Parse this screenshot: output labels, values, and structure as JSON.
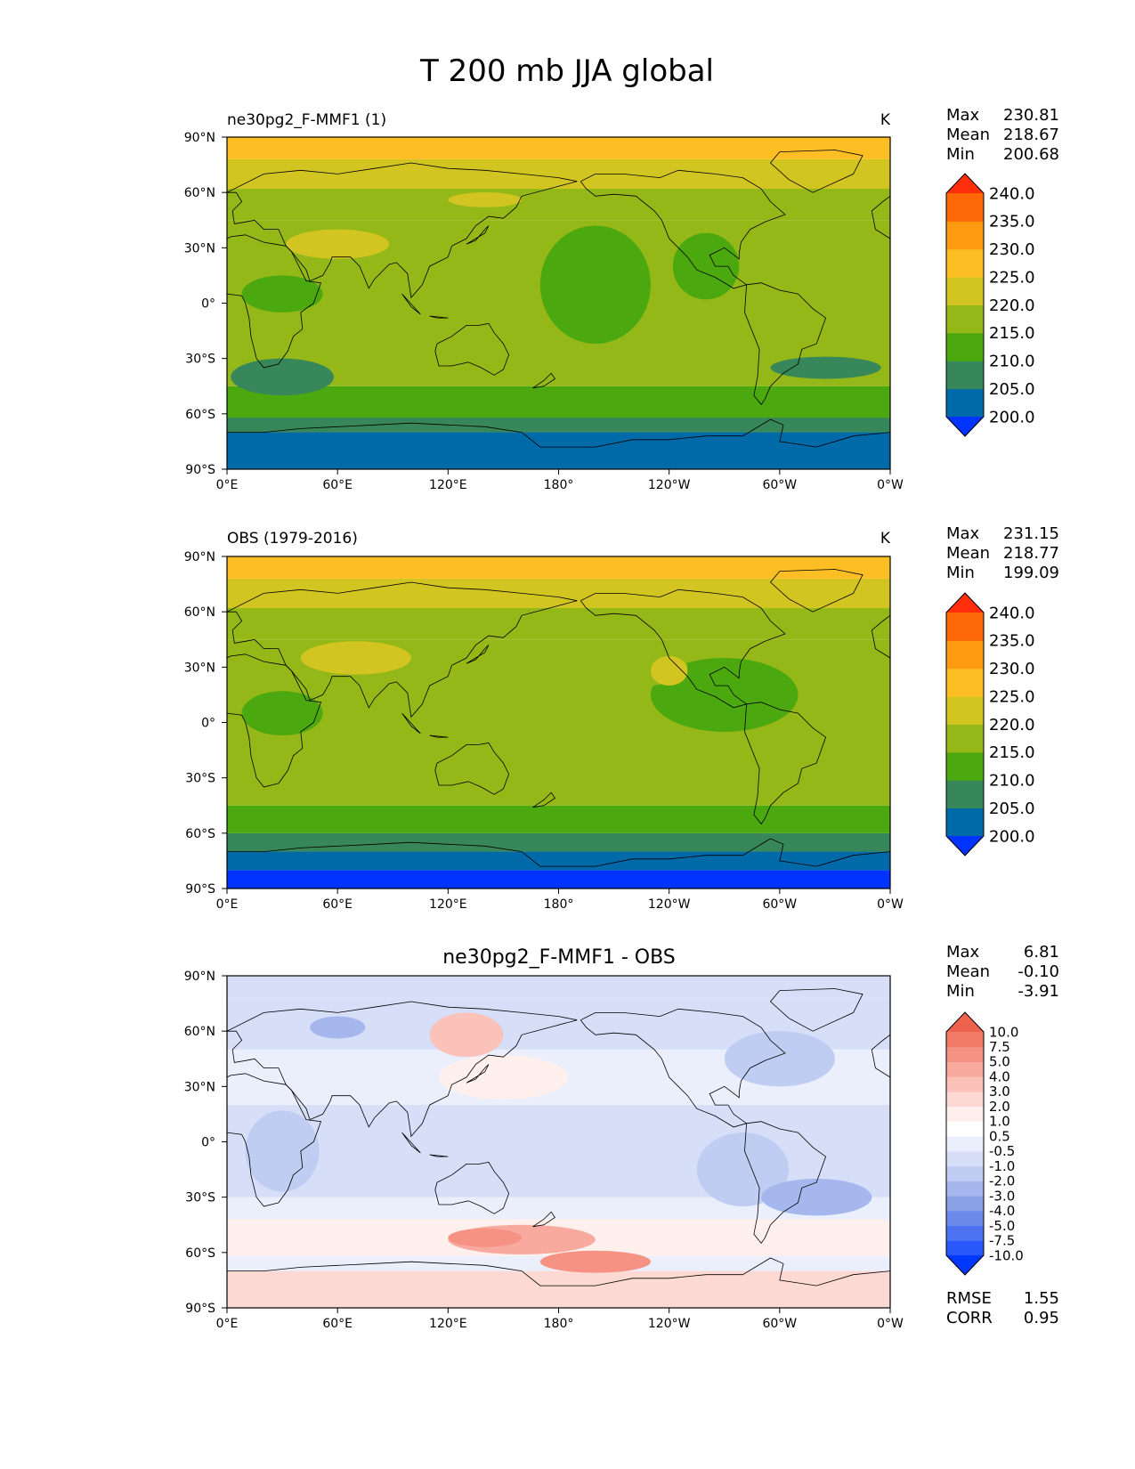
{
  "figure": {
    "title": "T 200 mb JJA global"
  },
  "colors": {
    "abs_levels": [
      "#0033ff",
      "#0069a8",
      "#37875a",
      "#4ba80e",
      "#94b817",
      "#d3c521",
      "#fdbe24",
      "#fd9a10",
      "#fe6807",
      "#ff2e0b"
    ],
    "diff_levels": [
      "#0038ff",
      "#2a58fa",
      "#4d72f2",
      "#6c8ae9",
      "#8aa1e6",
      "#a5b7ec",
      "#bfcdf3",
      "#d6def8",
      "#ebeffc",
      "#ffffff",
      "#fff0ee",
      "#fdd9d4",
      "#fbc2b9",
      "#f8aa9e",
      "#f59283",
      "#f27a68",
      "#ef624e",
      "#eb4933",
      "#e83018",
      "#ff2a00"
    ],
    "coastline": "#000000"
  },
  "chart_data": [
    {
      "type": "heatmap",
      "panel": "model",
      "left_title": "ne30pg2_F-MMF1 (1)",
      "units": "K",
      "stats": {
        "Max": "230.81",
        "Mean": "218.67",
        "Min": "200.68"
      },
      "xlim": [
        0,
        360
      ],
      "ylim": [
        -90,
        90
      ],
      "x_ticks": [
        "0°E",
        "60°E",
        "120°E",
        "180°",
        "120°W",
        "60°W",
        "0°W"
      ],
      "y_ticks": [
        "90°N",
        "60°N",
        "30°N",
        "0°",
        "30°S",
        "60°S",
        "90°S"
      ],
      "colorbar": {
        "levels": [
          "200.0",
          "205.0",
          "210.0",
          "215.0",
          "220.0",
          "225.0",
          "230.0",
          "235.0",
          "240.0"
        ],
        "extend": "both"
      },
      "zonal_bands": [
        {
          "lat": [
            -90,
            -70
          ],
          "value": 203
        },
        {
          "lat": [
            -70,
            -62
          ],
          "value": 208
        },
        {
          "lat": [
            -62,
            -45
          ],
          "value": 213
        },
        {
          "lat": [
            -45,
            45
          ],
          "value": 218
        },
        {
          "lat": [
            45,
            62
          ],
          "value": 216
        },
        {
          "lat": [
            62,
            78
          ],
          "value": 223
        },
        {
          "lat": [
            78,
            90
          ],
          "value": 228
        }
      ],
      "regions": [
        {
          "lon": 60,
          "lat": 32,
          "rlon": 28,
          "rlat": 8,
          "value": 223
        },
        {
          "lon": 140,
          "lat": 56,
          "rlon": 20,
          "rlat": 4,
          "value": 223
        },
        {
          "lon": 200,
          "lat": 10,
          "rlon": 30,
          "rlat": 32,
          "value": 213
        },
        {
          "lon": 30,
          "lat": 5,
          "rlon": 22,
          "rlat": 10,
          "value": 213
        },
        {
          "lon": 260,
          "lat": 20,
          "rlon": 18,
          "rlat": 18,
          "value": 213
        },
        {
          "lon": 30,
          "lat": -40,
          "rlon": 28,
          "rlat": 10,
          "value": 208
        },
        {
          "lon": 325,
          "lat": -35,
          "rlon": 30,
          "rlat": 6,
          "value": 208
        }
      ]
    },
    {
      "type": "heatmap",
      "panel": "obs",
      "left_title": "OBS (1979-2016)",
      "units": "K",
      "stats": {
        "Max": "231.15",
        "Mean": "218.77",
        "Min": "199.09"
      },
      "xlim": [
        0,
        360
      ],
      "ylim": [
        -90,
        90
      ],
      "x_ticks": [
        "0°E",
        "60°E",
        "120°E",
        "180°",
        "120°W",
        "60°W",
        "0°W"
      ],
      "y_ticks": [
        "90°N",
        "60°N",
        "30°N",
        "0°",
        "30°S",
        "60°S",
        "90°S"
      ],
      "colorbar": {
        "levels": [
          "200.0",
          "205.0",
          "210.0",
          "215.0",
          "220.0",
          "225.0",
          "230.0",
          "235.0",
          "240.0"
        ],
        "extend": "both"
      },
      "zonal_bands": [
        {
          "lat": [
            -90,
            -80
          ],
          "value": 199
        },
        {
          "lat": [
            -80,
            -70
          ],
          "value": 203
        },
        {
          "lat": [
            -70,
            -60
          ],
          "value": 208
        },
        {
          "lat": [
            -60,
            -45
          ],
          "value": 213
        },
        {
          "lat": [
            -45,
            45
          ],
          "value": 218
        },
        {
          "lat": [
            45,
            62
          ],
          "value": 217
        },
        {
          "lat": [
            62,
            78
          ],
          "value": 223
        },
        {
          "lat": [
            78,
            90
          ],
          "value": 228
        }
      ],
      "regions": [
        {
          "lon": 70,
          "lat": 35,
          "rlon": 30,
          "rlat": 9,
          "value": 223
        },
        {
          "lon": 30,
          "lat": 5,
          "rlon": 22,
          "rlat": 12,
          "value": 213
        },
        {
          "lon": 270,
          "lat": 15,
          "rlon": 40,
          "rlat": 20,
          "value": 213
        },
        {
          "lon": 210,
          "lat": 30,
          "rlon": 40,
          "rlat": 12,
          "value": 216
        },
        {
          "lon": 240,
          "lat": 28,
          "rlon": 10,
          "rlat": 8,
          "value": 223
        }
      ]
    },
    {
      "type": "heatmap",
      "panel": "diff",
      "center_title": "ne30pg2_F-MMF1 - OBS",
      "stats": {
        "Max": "6.81",
        "Mean": "-0.10",
        "Min": "-3.91"
      },
      "extra_stats": {
        "RMSE": "1.55",
        "CORR": "0.95"
      },
      "xlim": [
        0,
        360
      ],
      "ylim": [
        -90,
        90
      ],
      "x_ticks": [
        "0°E",
        "60°E",
        "120°E",
        "180°",
        "120°W",
        "60°W",
        "0°W"
      ],
      "y_ticks": [
        "90°N",
        "60°N",
        "30°N",
        "0°",
        "30°S",
        "60°S",
        "90°S"
      ],
      "colorbar": {
        "levels": [
          "-10.0",
          "-7.5",
          "-5.0",
          "-4.0",
          "-3.0",
          "-2.0",
          "-1.0",
          "-0.5",
          "0.5",
          "1.0",
          "2.0",
          "3.0",
          "4.0",
          "5.0",
          "7.5",
          "10.0"
        ],
        "extend": "both"
      },
      "zonal_bands": [
        {
          "lat": [
            -90,
            -70
          ],
          "value": 2.2
        },
        {
          "lat": [
            -70,
            -62
          ],
          "value": 0.3
        },
        {
          "lat": [
            -62,
            -42
          ],
          "value": 1.5
        },
        {
          "lat": [
            -42,
            -30
          ],
          "value": -0.3
        },
        {
          "lat": [
            -30,
            20
          ],
          "value": -0.6
        },
        {
          "lat": [
            20,
            50
          ],
          "value": 0
        },
        {
          "lat": [
            50,
            78
          ],
          "value": -0.8
        },
        {
          "lat": [
            78,
            90
          ],
          "value": -0.6
        }
      ],
      "regions": [
        {
          "lon": 160,
          "lat": -53,
          "rlon": 40,
          "rlat": 8,
          "value": 4.5
        },
        {
          "lon": 200,
          "lat": -65,
          "rlon": 30,
          "rlat": 6,
          "value": 5.5
        },
        {
          "lon": 140,
          "lat": -52,
          "rlon": 20,
          "rlat": 5,
          "value": 5.5
        },
        {
          "lon": 130,
          "lat": 58,
          "rlon": 20,
          "rlat": 12,
          "value": 3.5
        },
        {
          "lon": 150,
          "lat": 35,
          "rlon": 35,
          "rlat": 12,
          "value": 1.5
        },
        {
          "lon": 300,
          "lat": 45,
          "rlon": 30,
          "rlat": 15,
          "value": -1.8
        },
        {
          "lon": 30,
          "lat": -5,
          "rlon": 20,
          "rlat": 22,
          "value": -1.5
        },
        {
          "lon": 280,
          "lat": -15,
          "rlon": 25,
          "rlat": 20,
          "value": -1.5
        },
        {
          "lon": 320,
          "lat": -30,
          "rlon": 30,
          "rlat": 10,
          "value": -2.5
        },
        {
          "lon": 60,
          "lat": 62,
          "rlon": 15,
          "rlat": 6,
          "value": -2.5
        }
      ]
    }
  ]
}
